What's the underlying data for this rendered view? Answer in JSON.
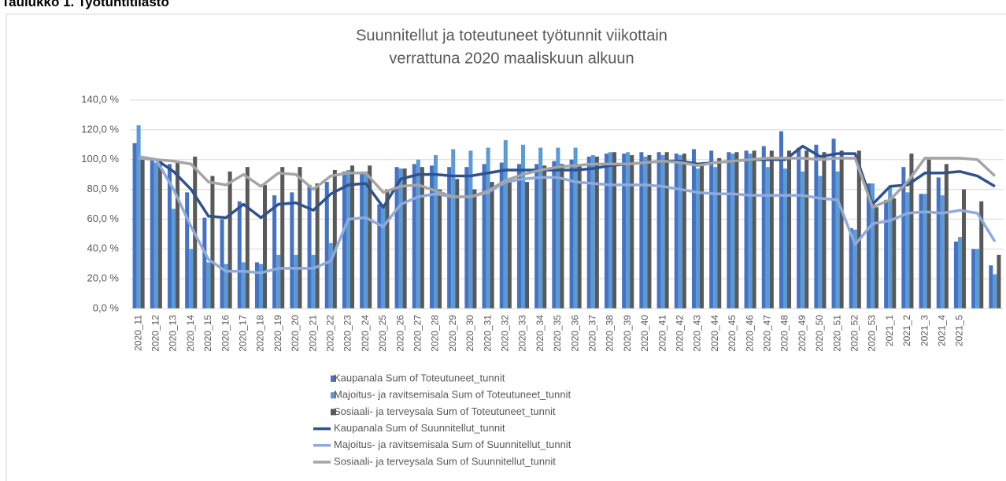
{
  "heading": "Taulukko 1. Työtuntitilasto",
  "chart_data": {
    "type": "combo",
    "title": "Suunnitellut ja toteutuneet työtunnit viikottain",
    "subtitle": "verrattuna 2020 maaliskuun alkuun",
    "categories": [
      "2020_11",
      "2020_12",
      "2020_13",
      "2020_14",
      "2020_15",
      "2020_16",
      "2020_17",
      "2020_18",
      "2020_19",
      "2020_20",
      "2020_21",
      "2020_22",
      "2020_23",
      "2020_24",
      "2020_25",
      "2020_26",
      "2020_27",
      "2020_28",
      "2020_29",
      "2020_30",
      "2020_31",
      "2020_32",
      "2020_33",
      "2020_34",
      "2020_35",
      "2020_36",
      "2020_37",
      "2020_38",
      "2020_39",
      "2020_40",
      "2020_41",
      "2020_42",
      "2020_43",
      "2020_44",
      "2020_45",
      "2020_46",
      "2020_47",
      "2020_48",
      "2020_49",
      "2020_50",
      "2020_51",
      "2020_52",
      "2020_53",
      "2021_1",
      "2021_2",
      "2021_3",
      "2021_4",
      "2021_5",
      null,
      null
    ],
    "ylim": [
      0,
      140
    ],
    "yticks": [
      {
        "value": 0,
        "label": "0,0 %"
      },
      {
        "value": 20,
        "label": "20,0 %"
      },
      {
        "value": 40,
        "label": "40,0 %"
      },
      {
        "value": 60,
        "label": "60,0 %"
      },
      {
        "value": 80,
        "label": "80,0 %"
      },
      {
        "value": 100,
        "label": "100,0 %"
      },
      {
        "value": 120,
        "label": "120,0 %"
      },
      {
        "value": 140,
        "label": "140,0 %"
      }
    ],
    "grid": true,
    "legend": "bottom",
    "series": [
      {
        "name": "Kaupanala Sum of Toteutuneet_tunnit",
        "kind": "bar",
        "color": "#4472c4",
        "values": [
          111,
          100,
          97,
          78,
          61,
          60,
          72,
          31,
          76,
          78,
          83,
          85,
          92,
          92,
          70,
          95,
          97,
          96,
          95,
          95,
          97,
          98,
          97,
          97,
          99,
          100,
          102,
          104,
          104,
          105,
          105,
          104,
          107,
          106,
          105,
          106,
          109,
          119,
          108,
          110,
          114,
          54,
          84,
          73,
          95,
          77,
          88,
          45,
          40,
          29
        ]
      },
      {
        "name": "Majoitus- ja ravitsemisala Sum of Toteutuneet_tunnit",
        "kind": "bar",
        "color": "#5b9bd5",
        "values": [
          123,
          98,
          67,
          40,
          31,
          30,
          31,
          30,
          36,
          36,
          36,
          44,
          93,
          92,
          70,
          94,
          100,
          103,
          107,
          106,
          108,
          113,
          110,
          108,
          108,
          108,
          103,
          105,
          105,
          102,
          103,
          103,
          94,
          95,
          104,
          104,
          95,
          94,
          92,
          89,
          92,
          53,
          84,
          82,
          78,
          77,
          76,
          48,
          40,
          23
        ]
      },
      {
        "name": "Sosiaali- ja terveysala Sum of Toteutuneet_tunnit",
        "kind": "bar",
        "color": "#595959",
        "values": [
          100,
          99,
          99,
          102,
          89,
          92,
          95,
          83,
          95,
          95,
          84,
          93,
          96,
          96,
          80,
          94,
          95,
          80,
          87,
          80,
          85,
          86,
          85,
          96,
          97,
          97,
          102,
          105,
          103,
          103,
          105,
          104,
          98,
          101,
          105,
          106,
          106,
          106,
          106,
          105,
          106,
          106,
          68,
          74,
          104,
          100,
          97,
          80,
          72,
          36
        ]
      },
      {
        "name": "Kaupanala Sum of Suunnitellut_tunnit",
        "kind": "line",
        "color": "#2f528f",
        "values": [
          102,
          100,
          92,
          80,
          62,
          61,
          70,
          61,
          70,
          71,
          66,
          77,
          83,
          84,
          68,
          87,
          90,
          90,
          89,
          89,
          91,
          93,
          93,
          93,
          93,
          93,
          94,
          96,
          97,
          98,
          99,
          99,
          97,
          98,
          99,
          100,
          100,
          100,
          109,
          102,
          104,
          104,
          70,
          82,
          83,
          91,
          91,
          92,
          89,
          82
        ]
      },
      {
        "name": "Majoitus- ja ravitsemisala Sum of Suunnitellut_tunnit",
        "kind": "line",
        "color": "#8faadc",
        "values": [
          102,
          100,
          80,
          55,
          33,
          25,
          25,
          24,
          27,
          27,
          27,
          32,
          60,
          61,
          55,
          70,
          75,
          77,
          75,
          75,
          78,
          85,
          87,
          88,
          88,
          85,
          84,
          83,
          83,
          83,
          82,
          80,
          78,
          77,
          77,
          76,
          76,
          76,
          76,
          74,
          73,
          43,
          57,
          59,
          64,
          65,
          64,
          66,
          64,
          45
        ]
      },
      {
        "name": "Sosiaali- ja terveysala Sum of Suunnitellut_tunnit",
        "kind": "line",
        "color": "#a5a5a5",
        "values": [
          101,
          100,
          99,
          97,
          85,
          83,
          90,
          82,
          91,
          90,
          80,
          89,
          91,
          91,
          78,
          82,
          83,
          79,
          75,
          75,
          79,
          86,
          90,
          93,
          95,
          96,
          97,
          97,
          97,
          98,
          99,
          98,
          96,
          98,
          99,
          100,
          101,
          101,
          101,
          100,
          101,
          101,
          68,
          73,
          85,
          101,
          101,
          101,
          100,
          89
        ]
      }
    ]
  }
}
